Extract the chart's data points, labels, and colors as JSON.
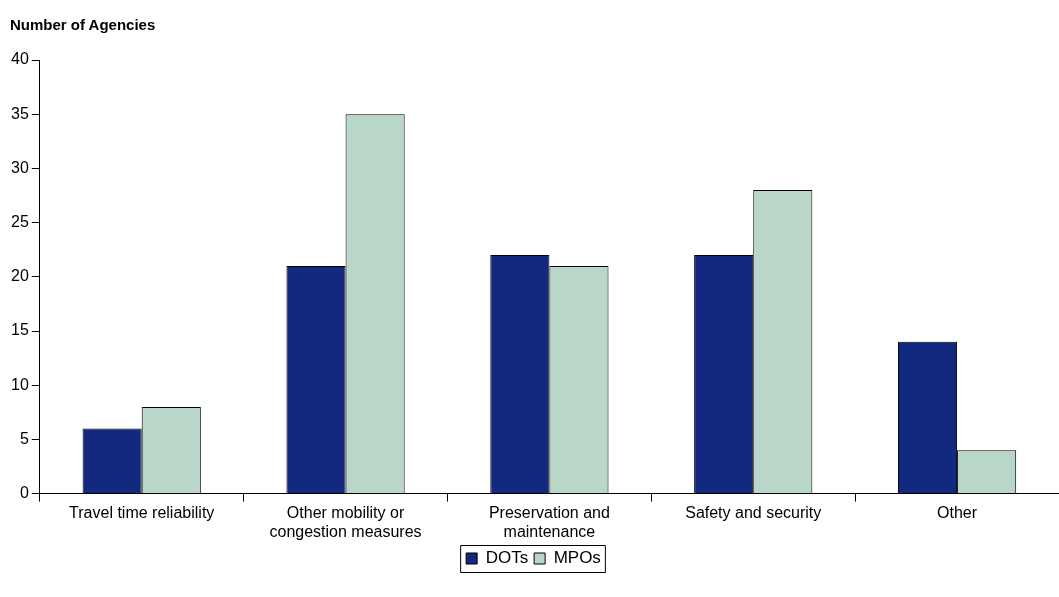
{
  "chart_data": {
    "type": "bar",
    "ylabel": "Number of Agencies",
    "categories": [
      "Travel time reliability",
      "Other mobility or congestion measures",
      "Preservation and maintenance",
      "Safety and security",
      "Other"
    ],
    "series": [
      {
        "name": "DOTs",
        "color": "#13287f",
        "values": [
          6,
          21,
          22,
          22,
          14
        ]
      },
      {
        "name": "MPOs",
        "color": "#b9d7c9",
        "values": [
          8,
          35,
          21,
          28,
          4
        ]
      }
    ],
    "ylim": [
      0,
      40
    ],
    "yticks": [
      0,
      5,
      10,
      15,
      20,
      25,
      30,
      35,
      40
    ],
    "grid": false,
    "legend": "bottom"
  }
}
